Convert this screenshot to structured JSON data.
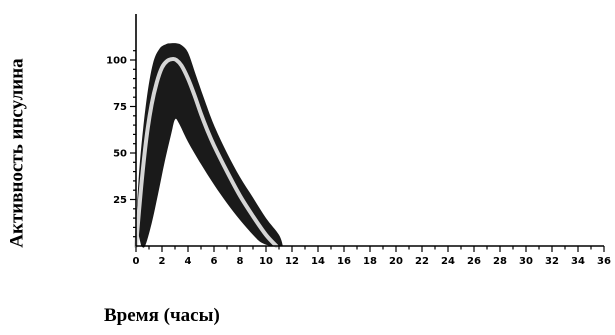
{
  "chart_data": {
    "type": "area",
    "xlabel": "Время (часы)",
    "ylabel": "Активность инсулина",
    "xlim": [
      0,
      36
    ],
    "ylim": [
      0,
      112
    ],
    "x_ticks_major": [
      0,
      2,
      4,
      6,
      8,
      10,
      12,
      14,
      16,
      18,
      20,
      22,
      24,
      26,
      28,
      30,
      32,
      34,
      36
    ],
    "y_ticks_labeled": [
      25,
      50,
      75,
      100
    ],
    "grid": false,
    "legend": "none",
    "series": [
      {
        "role": "band_upper",
        "color": "#1a1a1a",
        "x": [
          0,
          0.3,
          0.8,
          1.3,
          1.8,
          2.3,
          2.7,
          3.1,
          3.5,
          4.0,
          4.6,
          5.2,
          6.0,
          7.0,
          8.0,
          9.0,
          10.0,
          11.0,
          11.3
        ],
        "y": [
          12,
          45,
          78,
          98,
          106,
          108.5,
          109,
          109,
          108,
          104,
          92,
          80,
          65,
          50,
          37,
          26,
          15,
          6,
          0
        ]
      },
      {
        "role": "band_lower",
        "color": "#1a1a1a",
        "x": [
          0.4,
          0.7,
          1.2,
          1.7,
          2.2,
          2.7,
          3.0,
          3.3,
          4.0,
          5.0,
          6.0,
          7.0,
          8.0,
          9.0,
          9.6,
          10.3
        ],
        "y": [
          0,
          0,
          12,
          28,
          45,
          60,
          68,
          66,
          56,
          44,
          33,
          23,
          14,
          6,
          2,
          0
        ]
      },
      {
        "role": "center_line",
        "color": "#d6d6d6",
        "x": [
          0,
          0.4,
          0.8,
          1.2,
          1.6,
          2.0,
          2.4,
          2.8,
          3.1,
          3.5,
          4.0,
          4.5,
          5.0,
          5.5,
          6.0,
          7.0,
          8.0,
          9.0,
          10.0,
          10.8
        ],
        "y": [
          0,
          32,
          58,
          76,
          88,
          96,
          99.5,
          100.5,
          100,
          97,
          90,
          81,
          71,
          62,
          54,
          40,
          27,
          16,
          6,
          0
        ]
      }
    ]
  }
}
